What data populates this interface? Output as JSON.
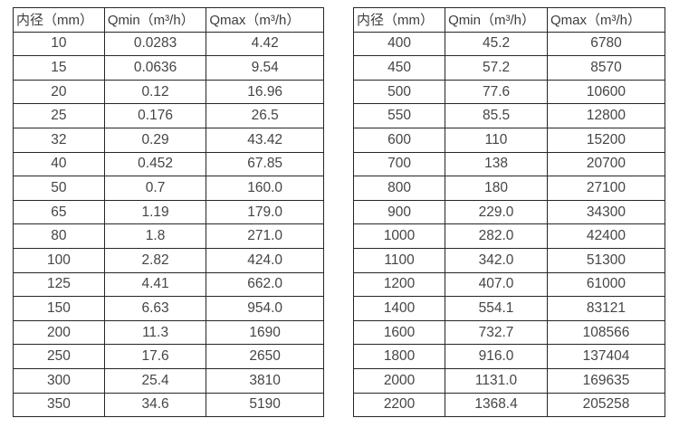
{
  "page": {
    "background_color": "#ffffff",
    "border_color": "#262626",
    "text_color": "#454545"
  },
  "tables": [
    {
      "name": "flow-spec-small-diameters",
      "headers": [
        "内径（mm）",
        "Qmin（m³/h）",
        "Qmax（m³/h）"
      ],
      "rows": [
        [
          "10",
          "0.0283",
          "4.42"
        ],
        [
          "15",
          "0.0636",
          "9.54"
        ],
        [
          "20",
          "0.12",
          "16.96"
        ],
        [
          "25",
          "0.176",
          "26.5"
        ],
        [
          "32",
          "0.29",
          "43.42"
        ],
        [
          "40",
          "0.452",
          "67.85"
        ],
        [
          "50",
          "0.7",
          "160.0"
        ],
        [
          "65",
          "1.19",
          "179.0"
        ],
        [
          "80",
          "1.8",
          "271.0"
        ],
        [
          "100",
          "2.82",
          "424.0"
        ],
        [
          "125",
          "4.41",
          "662.0"
        ],
        [
          "150",
          "6.63",
          "954.0"
        ],
        [
          "200",
          "11.3",
          "1690"
        ],
        [
          "250",
          "17.6",
          "2650"
        ],
        [
          "300",
          "25.4",
          "3810"
        ],
        [
          "350",
          "34.6",
          "5190"
        ]
      ]
    },
    {
      "name": "flow-spec-large-diameters",
      "headers": [
        "内径（mm）",
        "Qmin（m³/h）",
        "Qmax（m³/h）"
      ],
      "rows": [
        [
          "400",
          "45.2",
          "6780"
        ],
        [
          "450",
          "57.2",
          "8570"
        ],
        [
          "500",
          "77.6",
          "10600"
        ],
        [
          "550",
          "85.5",
          "12800"
        ],
        [
          "600",
          "110",
          "15200"
        ],
        [
          "700",
          "138",
          "20700"
        ],
        [
          "800",
          "180",
          "27100"
        ],
        [
          "900",
          "229.0",
          "34300"
        ],
        [
          "1000",
          "282.0",
          "42400"
        ],
        [
          "1100",
          "342.0",
          "51300"
        ],
        [
          "1200",
          "407.0",
          "61000"
        ],
        [
          "1400",
          "554.1",
          "83121"
        ],
        [
          "1600",
          "732.7",
          "108566"
        ],
        [
          "1800",
          "916.0",
          "137404"
        ],
        [
          "2000",
          "1131.0",
          "169635"
        ],
        [
          "2200",
          "1368.4",
          "205258"
        ]
      ]
    }
  ]
}
